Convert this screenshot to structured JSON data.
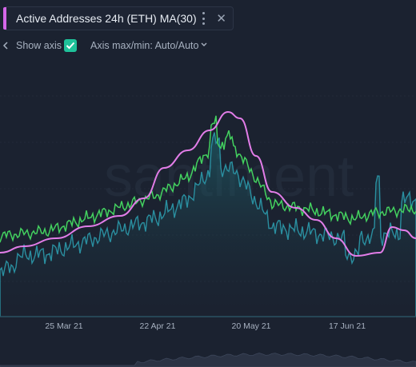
{
  "metric_chip": {
    "title": "Active Addresses 24h (ETH) MA(30)",
    "accent_color": "#d466e8",
    "menu_icon": "more-vertical-icon",
    "close_icon": "close-icon"
  },
  "toolbar": {
    "show_axis_label": "Show axis",
    "show_axis_checked": true,
    "axis_maxmin_label": "Axis max/min: Auto/Auto"
  },
  "watermark": "santiment",
  "chart_data": {
    "type": "line",
    "x_tick_labels": [
      "25 Mar 21",
      "22 Apr 21",
      "20 May 21",
      "17 Jun 21"
    ],
    "series": [
      {
        "color": "#2a8fa0",
        "shape": "area"
      },
      {
        "color": "#43d15f"
      },
      {
        "color": "#e27de8"
      }
    ]
  },
  "colors": {
    "background": "#1b2230",
    "checkbox": "#1fc29a",
    "area_line": "#2a8fa0",
    "green_line": "#43d15f",
    "ma_line": "#e27de8"
  }
}
